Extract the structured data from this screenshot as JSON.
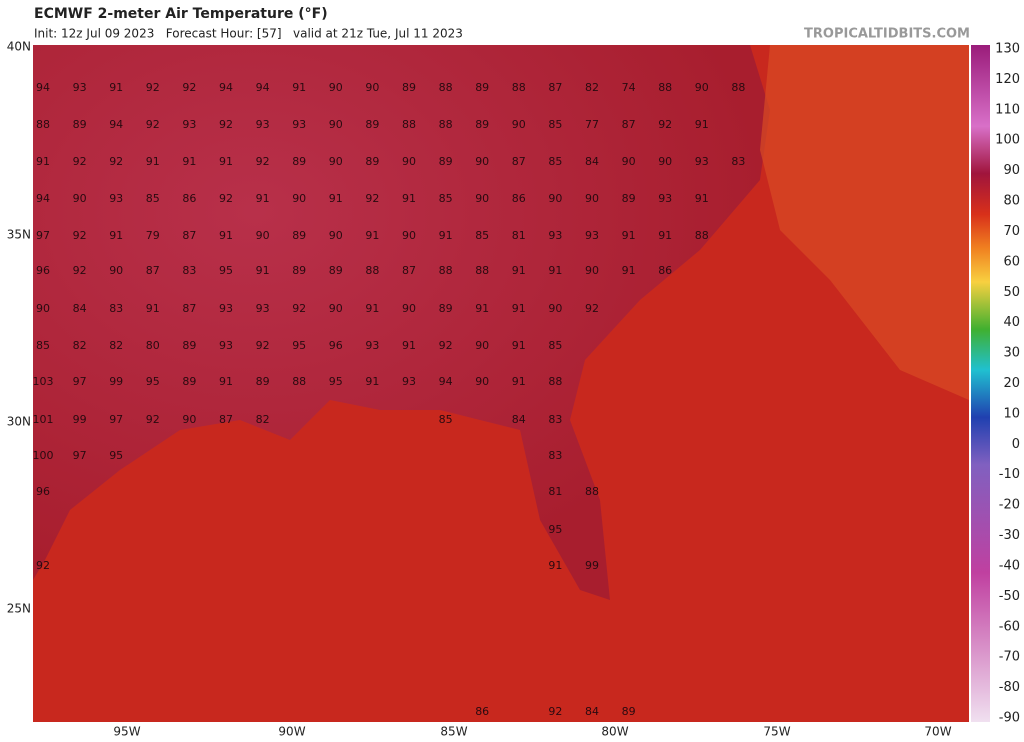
{
  "header": {
    "title": "ECMWF 2-meter Air Temperature (°F)",
    "init": "Init: 12z Jul 09 2023   Forecast Hour: [57]   valid at 21z Tue, Jul 11 2023",
    "site": "TROPICALTIDBITS.COM"
  },
  "map": {
    "lat_labels": [
      "40N",
      "35N",
      "30N",
      "25N"
    ],
    "lon_labels": [
      "95W",
      "90W",
      "85W",
      "80W",
      "75W",
      "70W"
    ],
    "temperature_rows": [
      [
        94,
        93,
        91,
        92,
        92,
        94,
        94,
        91,
        90,
        90,
        89,
        88,
        89,
        88,
        87,
        82,
        74,
        88,
        90,
        88
      ],
      [
        88,
        89,
        94,
        92,
        93,
        92,
        93,
        93,
        90,
        89,
        88,
        88,
        89,
        90,
        85,
        77,
        87,
        92,
        91
      ],
      [
        91,
        92,
        92,
        91,
        91,
        91,
        92,
        89,
        90,
        89,
        90,
        89,
        90,
        87,
        85,
        84,
        90,
        90,
        93,
        83
      ],
      [
        94,
        90,
        93,
        85,
        86,
        92,
        91,
        90,
        91,
        92,
        91,
        85,
        90,
        86,
        90,
        90,
        89,
        93,
        91
      ],
      [
        97,
        92,
        91,
        79,
        87,
        91,
        90,
        89,
        90,
        91,
        90,
        91,
        85,
        81,
        93,
        93,
        91,
        91,
        88
      ],
      [
        96,
        92,
        90,
        87,
        83,
        95,
        91,
        89,
        89,
        88,
        87,
        88,
        88,
        91,
        91,
        90,
        91,
        86
      ],
      [
        90,
        84,
        83,
        91,
        87,
        93,
        93,
        92,
        90,
        91,
        90,
        89,
        91,
        91,
        90,
        92
      ],
      [
        85,
        82,
        82,
        80,
        89,
        93,
        92,
        95,
        96,
        93,
        91,
        92,
        90,
        91,
        85
      ],
      [
        103,
        97,
        99,
        95,
        89,
        91,
        89,
        88,
        95,
        91,
        93,
        94,
        90,
        91,
        88
      ],
      [
        101,
        99,
        97,
        92,
        90,
        87,
        82,
        null,
        null,
        null,
        null,
        85,
        null,
        84,
        83
      ],
      [
        100,
        97,
        95,
        null,
        null,
        null,
        null,
        null,
        null,
        null,
        null,
        null,
        null,
        null,
        83
      ],
      [
        96,
        null,
        null,
        null,
        null,
        null,
        null,
        null,
        null,
        null,
        null,
        null,
        null,
        null,
        81,
        88
      ],
      [
        null,
        null,
        null,
        null,
        null,
        null,
        null,
        null,
        null,
        null,
        null,
        null,
        null,
        null,
        95
      ],
      [
        92,
        null,
        null,
        null,
        null,
        null,
        null,
        null,
        null,
        null,
        null,
        null,
        null,
        null,
        91,
        99
      ],
      [
        null,
        null,
        null,
        null,
        null,
        null,
        null,
        null,
        null,
        null,
        null,
        null,
        86,
        null,
        92,
        84,
        89
      ]
    ]
  },
  "colorbar": {
    "labels": [
      130,
      120,
      110,
      100,
      90,
      80,
      70,
      60,
      50,
      40,
      30,
      20,
      10,
      0,
      -10,
      -20,
      -30,
      -40,
      -50,
      -60,
      -70,
      -80,
      -90
    ]
  }
}
